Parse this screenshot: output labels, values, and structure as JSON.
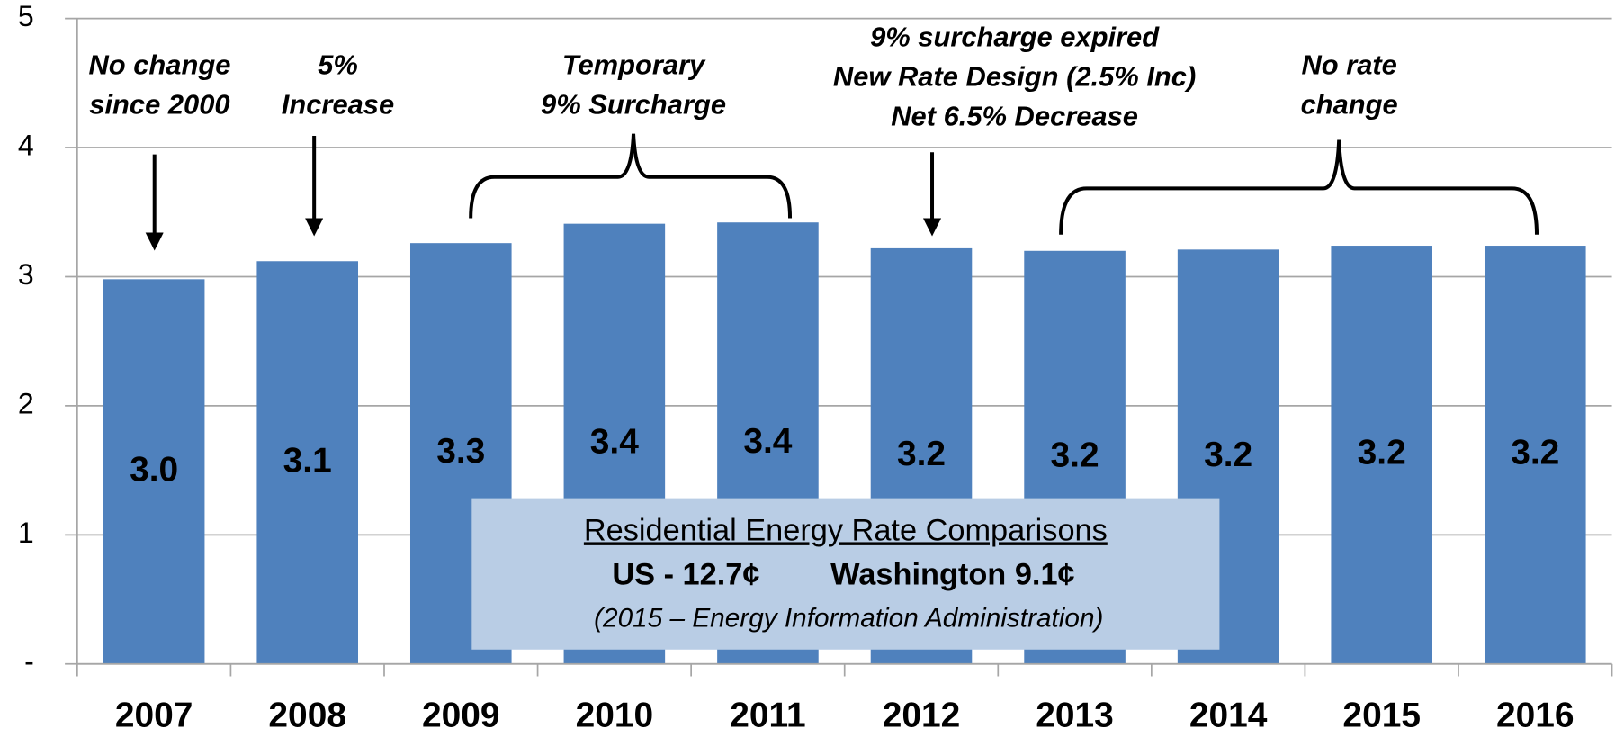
{
  "chart_data": {
    "type": "bar",
    "categories": [
      "2007",
      "2008",
      "2009",
      "2010",
      "2011",
      "2012",
      "2013",
      "2014",
      "2015",
      "2016"
    ],
    "values": [
      2.98,
      3.12,
      3.26,
      3.41,
      3.42,
      3.22,
      3.2,
      3.21,
      3.24,
      3.24
    ],
    "value_labels": [
      "3.0",
      "3.1",
      "3.3",
      "3.4",
      "3.4",
      "3.2",
      "3.2",
      "3.2",
      "3.2",
      "3.2"
    ],
    "color": "#4f81bd",
    "ylim": [
      0,
      5
    ],
    "yticks": [
      {
        "value": 0,
        "label": "-"
      },
      1,
      2,
      3,
      4,
      5
    ],
    "grid": true,
    "annotations": [
      {
        "lines": [
          "No change",
          "since 2000"
        ]
      },
      {
        "lines": [
          "5%",
          "Increase"
        ]
      },
      {
        "lines": [
          "Temporary",
          "9% Surcharge"
        ]
      },
      {
        "lines": [
          "9%  surcharge expired",
          "New Rate Design (2.5% Inc)",
          "Net 6.5% Decrease"
        ]
      },
      {
        "lines": [
          "No rate",
          "change"
        ]
      }
    ],
    "inset": {
      "title": "Residential Energy Rate Comparisons",
      "us": "US - 12.7¢",
      "washington": "Washington 9.1¢",
      "source": "(2015 – Energy Information Administration)"
    }
  }
}
